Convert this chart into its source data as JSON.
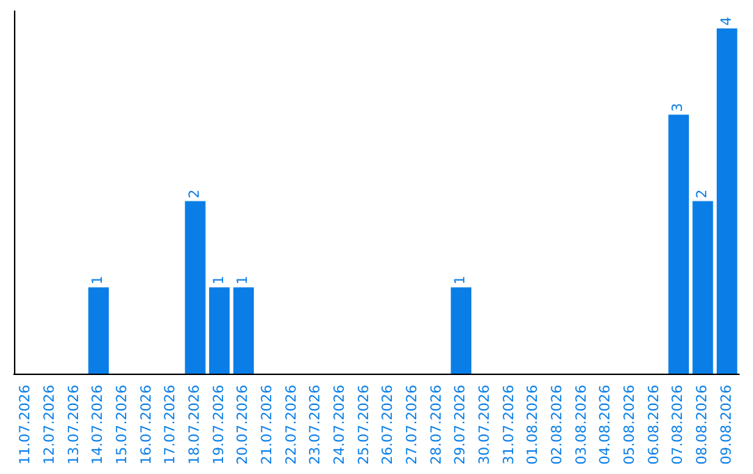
{
  "chart_data": {
    "type": "bar",
    "categories": [
      "11.07.2026",
      "12.07.2026",
      "13.07.2026",
      "14.07.2026",
      "15.07.2026",
      "16.07.2026",
      "17.07.2026",
      "18.07.2026",
      "19.07.2026",
      "20.07.2026",
      "21.07.2026",
      "22.07.2026",
      "23.07.2026",
      "24.07.2026",
      "25.07.2026",
      "26.07.2026",
      "27.07.2026",
      "28.07.2026",
      "29.07.2026",
      "30.07.2026",
      "31.07.2026",
      "01.08.2026",
      "02.08.2026",
      "03.08.2026",
      "04.08.2026",
      "05.08.2026",
      "06.08.2026",
      "07.08.2026",
      "08.08.2026",
      "09.08.2026"
    ],
    "values": [
      null,
      null,
      null,
      1,
      null,
      null,
      null,
      2,
      1,
      1,
      null,
      null,
      null,
      null,
      null,
      null,
      null,
      null,
      1,
      null,
      null,
      null,
      null,
      null,
      null,
      null,
      null,
      3,
      2,
      4
    ],
    "color": "#0a7ee6",
    "data_labels": true,
    "tick_labels": "x",
    "grid": false
  }
}
